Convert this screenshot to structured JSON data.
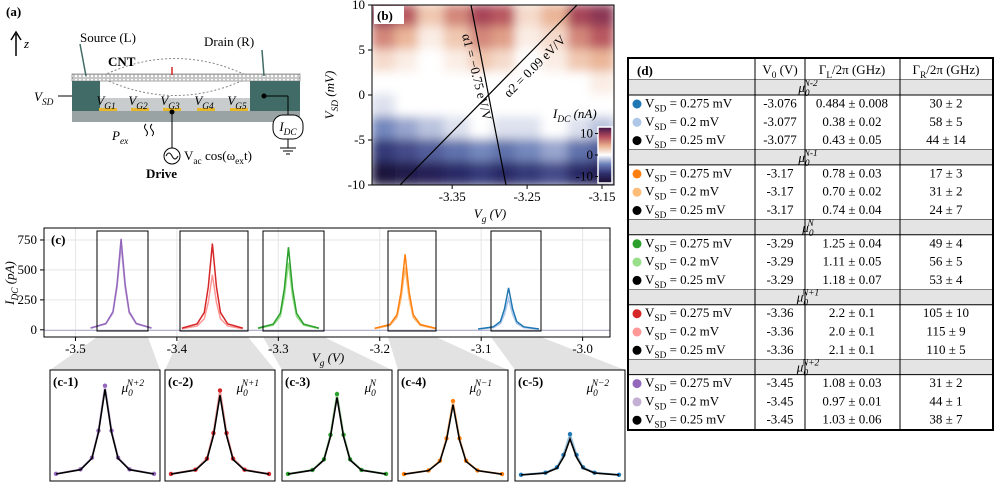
{
  "diagram": {
    "label": "(a)",
    "axis": "z",
    "source": "Source (L)",
    "drain": "Drain (R)",
    "cnt": "CNT",
    "vsd": {
      "main": "V",
      "sub": "SD"
    },
    "gates": [
      {
        "main": "V",
        "sub": "G1"
      },
      {
        "main": "V",
        "sub": "G2"
      },
      {
        "main": "V",
        "sub": "G3"
      },
      {
        "main": "V",
        "sub": "G4"
      },
      {
        "main": "V",
        "sub": "G5"
      }
    ],
    "pex": {
      "main": "P",
      "sub": "ex"
    },
    "vac": {
      "main": "V",
      "sub": "ac",
      "rest": " cos(ω",
      "sub2": "ex",
      "rest2": "t)"
    },
    "drive": "Drive",
    "idc": {
      "main": "I",
      "sub": "DC"
    }
  },
  "chart_data": [
    {
      "type": "heatmap",
      "label": "(b)",
      "xlabel": {
        "main": "V",
        "sub": "g",
        "rest": " (V)"
      },
      "ylabel": {
        "main": "V",
        "sub": "SD",
        "rest": " (mV)"
      },
      "x": [
        -3.44,
        -3.41,
        -3.38,
        -3.34,
        -3.31,
        -3.28,
        -3.25,
        -3.21,
        -3.18,
        -3.15
      ],
      "y": [
        8.75,
        6.25,
        3.75,
        1.25,
        -1.25,
        -3.75,
        -6.25,
        -8.75
      ],
      "z": [
        [
          10,
          8,
          3,
          6,
          9,
          8,
          2,
          4,
          9,
          10
        ],
        [
          6,
          4,
          1,
          3,
          6,
          5,
          1,
          2,
          6,
          8
        ],
        [
          2,
          1,
          0,
          1,
          3,
          2,
          0,
          1,
          3,
          4
        ],
        [
          0,
          0,
          0,
          0,
          0,
          0,
          0,
          0,
          0,
          1
        ],
        [
          -1,
          0,
          0,
          0,
          0,
          0,
          0,
          0,
          0,
          0
        ],
        [
          -4,
          -3,
          -2,
          -1,
          0,
          -1,
          -1,
          0,
          -1,
          -2
        ],
        [
          -8,
          -7,
          -6,
          -5,
          -4,
          -5,
          -4,
          -3,
          -5,
          -6
        ],
        [
          -12,
          -11,
          -10,
          -9,
          -8,
          -9,
          -8,
          -7,
          -9,
          -10
        ]
      ],
      "xlim": [
        -3.457,
        -3.134
      ],
      "ylim": [
        -10,
        10
      ],
      "xticks": [
        -3.35,
        -3.25,
        -3.15
      ],
      "yticks": [
        -10,
        -5,
        0,
        5,
        10
      ],
      "colorbar": {
        "label": {
          "main": "I",
          "sub": "DC",
          "rest": " (nA)"
        },
        "lim": [
          -13,
          13
        ],
        "ticks": [
          10,
          0,
          -10
        ]
      },
      "annotations": [
        "α1 = −0.75 eV/V",
        "α2 = 0.09 eV/V"
      ]
    },
    {
      "type": "line",
      "label": "(c)",
      "xlabel": {
        "main": "V",
        "sub": "g",
        "rest": " (V)"
      },
      "ylabel": {
        "main": "I",
        "sub": "DC",
        "rest": " (pA)"
      },
      "xlim": [
        -3.531,
        -2.973
      ],
      "ylim": [
        -60,
        850
      ],
      "xticks": [
        -3.5,
        -3.4,
        -3.3,
        -3.2,
        -3.1,
        {
          "value": -3,
          "label": "-3.0"
        }
      ],
      "yticks": [
        0,
        250,
        500,
        750
      ],
      "grid": true,
      "series": [
        {
          "color": "#c5b0d5",
          "x": [
            -3.485,
            -3.47,
            -3.463,
            -3.459,
            -3.455,
            -3.451,
            -3.447,
            -3.44,
            -3.425
          ],
          "values": [
            14,
            49,
            140,
            350,
            700,
            350,
            140,
            49,
            14
          ]
        },
        {
          "color": "#9467bd",
          "x": [
            -3.485,
            -3.47,
            -3.463,
            -3.459,
            -3.455,
            -3.451,
            -3.447,
            -3.44,
            -3.425
          ],
          "values": [
            15,
            53,
            152,
            380,
            760,
            380,
            152,
            53,
            15
          ]
        },
        {
          "color": "#ff9896",
          "x": [
            -3.395,
            -3.38,
            -3.373,
            -3.369,
            -3.365,
            -3.361,
            -3.357,
            -3.35,
            -3.335
          ],
          "values": [
            9,
            32,
            92,
            230,
            460,
            230,
            92,
            32,
            9
          ]
        },
        {
          "color": "#d62728",
          "x": [
            -3.395,
            -3.38,
            -3.373,
            -3.369,
            -3.365,
            -3.361,
            -3.357,
            -3.35,
            -3.335
          ],
          "values": [
            14,
            50,
            144,
            360,
            720,
            360,
            144,
            50,
            14
          ]
        },
        {
          "color": "#98df8a",
          "x": [
            -3.32,
            -3.305,
            -3.298,
            -3.294,
            -3.29,
            -3.286,
            -3.282,
            -3.275,
            -3.26
          ],
          "values": [
            11,
            39,
            112,
            280,
            560,
            280,
            112,
            39,
            11
          ]
        },
        {
          "color": "#2ca02c",
          "x": [
            -3.32,
            -3.305,
            -3.298,
            -3.294,
            -3.29,
            -3.286,
            -3.282,
            -3.275,
            -3.26
          ],
          "values": [
            14,
            48,
            138,
            345,
            690,
            345,
            138,
            48,
            14
          ]
        },
        {
          "color": "#ffbb78",
          "x": [
            -3.205,
            -3.19,
            -3.183,
            -3.179,
            -3.175,
            -3.171,
            -3.167,
            -3.16,
            -3.145
          ],
          "values": [
            10,
            36,
            104,
            260,
            520,
            260,
            104,
            36,
            10
          ]
        },
        {
          "color": "#ff7f0e",
          "x": [
            -3.205,
            -3.19,
            -3.183,
            -3.179,
            -3.175,
            -3.171,
            -3.167,
            -3.16,
            -3.145
          ],
          "values": [
            13,
            44,
            126,
            315,
            630,
            315,
            126,
            44,
            13
          ]
        },
        {
          "color": "#aec7e8",
          "x": [
            -3.103,
            -3.088,
            -3.081,
            -3.077,
            -3.073,
            -3.069,
            -3.065,
            -3.058,
            -3.043
          ],
          "values": [
            5,
            18,
            52,
            130,
            260,
            130,
            52,
            18,
            5
          ]
        },
        {
          "color": "#1f77b4",
          "x": [
            -3.103,
            -3.088,
            -3.081,
            -3.077,
            -3.073,
            -3.069,
            -3.065,
            -3.058,
            -3.043
          ],
          "values": [
            7,
            25,
            70,
            175,
            350,
            175,
            70,
            25,
            7
          ]
        }
      ]
    },
    {
      "type": "inset",
      "label": "(c-1)",
      "mu": {
        "main": "μ",
        "sub": "0",
        "sup": "N+2"
      },
      "color": "#9467bd",
      "xlim": [
        -3.485,
        -3.425
      ],
      "ylim": [
        -20,
        800
      ],
      "x": [
        -3.485,
        -3.47,
        -3.463,
        -3.459,
        -3.455,
        -3.451,
        -3.447,
        -3.44,
        -3.425
      ],
      "series": [
        {
          "color": "#9467bd",
          "values": [
            15,
            53,
            152,
            380,
            760,
            380,
            152,
            53,
            15
          ]
        },
        {
          "color": "#000000",
          "values": [
            14,
            50,
            146,
            365,
            730,
            365,
            146,
            50,
            14
          ]
        }
      ]
    },
    {
      "type": "inset",
      "label": "(c-2)",
      "mu": {
        "main": "μ",
        "sub": "0",
        "sup": "N+1"
      },
      "color": "#d62728",
      "xlim": [
        -3.395,
        -3.335
      ],
      "ylim": [
        -20,
        800
      ],
      "x": [
        -3.395,
        -3.38,
        -3.373,
        -3.369,
        -3.365,
        -3.361,
        -3.357,
        -3.35,
        -3.335
      ],
      "series": [
        {
          "color": "#d62728",
          "values": [
            14,
            50,
            144,
            360,
            720,
            360,
            144,
            50,
            14
          ]
        },
        {
          "color": "#000000",
          "values": [
            13,
            47,
            136,
            340,
            680,
            340,
            136,
            47,
            13
          ]
        }
      ]
    },
    {
      "type": "inset",
      "label": "(c-3)",
      "mu": {
        "main": "μ",
        "sub": "0",
        "sup": "N"
      },
      "color": "#2ca02c",
      "xlim": [
        -3.32,
        -3.26
      ],
      "ylim": [
        -20,
        800
      ],
      "x": [
        -3.32,
        -3.305,
        -3.298,
        -3.294,
        -3.29,
        -3.286,
        -3.282,
        -3.275,
        -3.26
      ],
      "series": [
        {
          "color": "#2ca02c",
          "values": [
            14,
            48,
            138,
            345,
            690,
            345,
            138,
            48,
            14
          ]
        },
        {
          "color": "#000000",
          "values": [
            13,
            46,
            132,
            330,
            660,
            330,
            132,
            46,
            13
          ]
        }
      ]
    },
    {
      "type": "inset",
      "label": "(c-4)",
      "mu": {
        "main": "μ",
        "sub": "0",
        "sup": "N−1"
      },
      "color": "#ff7f0e",
      "xlim": [
        -3.205,
        -3.145
      ],
      "ylim": [
        -20,
        800
      ],
      "x": [
        -3.205,
        -3.19,
        -3.183,
        -3.179,
        -3.175,
        -3.171,
        -3.167,
        -3.16,
        -3.145
      ],
      "series": [
        {
          "color": "#ff7f0e",
          "values": [
            13,
            44,
            126,
            315,
            630,
            315,
            126,
            44,
            13
          ]
        },
        {
          "color": "#000000",
          "values": [
            12,
            42,
            120,
            300,
            600,
            300,
            120,
            42,
            12
          ]
        }
      ]
    },
    {
      "type": "inset",
      "label": "(c-5)",
      "mu": {
        "main": "μ",
        "sub": "0",
        "sup": "N−2"
      },
      "color": "#1f77b4",
      "xlim": [
        -3.103,
        -3.043
      ],
      "ylim": [
        -20,
        800
      ],
      "x": [
        -3.103,
        -3.088,
        -3.081,
        -3.077,
        -3.073,
        -3.069,
        -3.065,
        -3.058,
        -3.043
      ],
      "series": [
        {
          "color": "#1f77b4",
          "values": [
            7,
            25,
            70,
            175,
            350,
            175,
            70,
            25,
            7
          ]
        },
        {
          "color": "#000000",
          "values": [
            6,
            22,
            62,
            155,
            310,
            155,
            62,
            22,
            6
          ]
        }
      ]
    }
  ],
  "table": {
    "label": "(d)",
    "header": [
      {
        "main": "V",
        "sub": "0",
        "rest": " (V)"
      },
      {
        "main": "Γ",
        "sub": "L",
        "rest": "/2π (GHz)"
      },
      {
        "main": "Γ",
        "sub": "R",
        "rest": "/2π (GHz)"
      }
    ],
    "groups": [
      {
        "title": {
          "main": "μ",
          "sub": "0",
          "sup": "N-2"
        },
        "rows": [
          {
            "color": "#1f77b4",
            "label": {
              "main": "V",
              "sub": "SD",
              "rest": " = 0.275 mV"
            },
            "cells": [
              -3.076,
              "0.484 ± 0.008",
              "30 ± 2"
            ]
          },
          {
            "color": "#aec7e8",
            "label": {
              "main": "V",
              "sub": "SD",
              "rest": " = 0.2 mV"
            },
            "cells": [
              -3.077,
              "0.38 ± 0.02",
              "58 ± 5"
            ]
          },
          {
            "color": "#000000",
            "label": {
              "main": "V",
              "sub": "SD",
              "rest": " = 0.25 mV"
            },
            "cells": [
              -3.077,
              "0.43 ± 0.05",
              "44 ± 14"
            ]
          }
        ]
      },
      {
        "title": {
          "main": "μ",
          "sub": "0",
          "sup": "N-1"
        },
        "rows": [
          {
            "color": "#ff7f0e",
            "label": {
              "main": "V",
              "sub": "SD",
              "rest": " = 0.275 mV"
            },
            "cells": [
              -3.17,
              "0.78 ± 0.03",
              "17 ± 3"
            ]
          },
          {
            "color": "#ffbb78",
            "label": {
              "main": "V",
              "sub": "SD",
              "rest": " = 0.2 mV"
            },
            "cells": [
              -3.17,
              "0.70 ± 0.02",
              "31 ± 2"
            ]
          },
          {
            "color": "#000000",
            "label": {
              "main": "V",
              "sub": "SD",
              "rest": " = 0.25 mV"
            },
            "cells": [
              -3.17,
              "0.74 ± 0.04",
              "24 ± 7"
            ]
          }
        ]
      },
      {
        "title": {
          "main": "μ",
          "sub": "0",
          "sup": "N"
        },
        "rows": [
          {
            "color": "#2ca02c",
            "label": {
              "main": "V",
              "sub": "SD",
              "rest": " = 0.275 mV"
            },
            "cells": [
              -3.29,
              "1.25 ± 0.04",
              "49 ± 4"
            ]
          },
          {
            "color": "#98df8a",
            "label": {
              "main": "V",
              "sub": "SD",
              "rest": " = 0.2 mV"
            },
            "cells": [
              -3.29,
              "1.11 ± 0.05",
              "56 ± 5"
            ]
          },
          {
            "color": "#000000",
            "label": {
              "main": "V",
              "sub": "SD",
              "rest": " = 0.25 mV"
            },
            "cells": [
              -3.29,
              "1.18 ± 0.07",
              "53 ± 4"
            ]
          }
        ]
      },
      {
        "title": {
          "main": "μ",
          "sub": "0",
          "sup": "N+1"
        },
        "rows": [
          {
            "color": "#d62728",
            "label": {
              "main": "V",
              "sub": "SD",
              "rest": " = 0.275 mV"
            },
            "cells": [
              -3.36,
              "2.2 ± 0.1",
              "105 ± 10"
            ]
          },
          {
            "color": "#ff9896",
            "label": {
              "main": "V",
              "sub": "SD",
              "rest": " = 0.2 mV"
            },
            "cells": [
              -3.36,
              "2.0 ± 0.1",
              "115 ± 9"
            ]
          },
          {
            "color": "#000000",
            "label": {
              "main": "V",
              "sub": "SD",
              "rest": " = 0.25 mV"
            },
            "cells": [
              -3.36,
              "2.1 ± 0.1",
              "110 ± 5"
            ]
          }
        ]
      },
      {
        "title": {
          "main": "μ",
          "sub": "0",
          "sup": "N+2"
        },
        "rows": [
          {
            "color": "#9467bd",
            "label": {
              "main": "V",
              "sub": "SD",
              "rest": " = 0.275 mV"
            },
            "cells": [
              -3.45,
              "1.08 ± 0.03",
              "31 ± 2"
            ]
          },
          {
            "color": "#c5b0d5",
            "label": {
              "main": "V",
              "sub": "SD",
              "rest": " = 0.2 mV"
            },
            "cells": [
              -3.45,
              "0.97 ± 0.01",
              "44 ± 1"
            ]
          },
          {
            "color": "#000000",
            "label": {
              "main": "V",
              "sub": "SD",
              "rest": " = 0.25 mV"
            },
            "cells": [
              -3.45,
              "1.03 ± 0.06",
              "38 ± 7"
            ]
          }
        ]
      }
    ]
  }
}
